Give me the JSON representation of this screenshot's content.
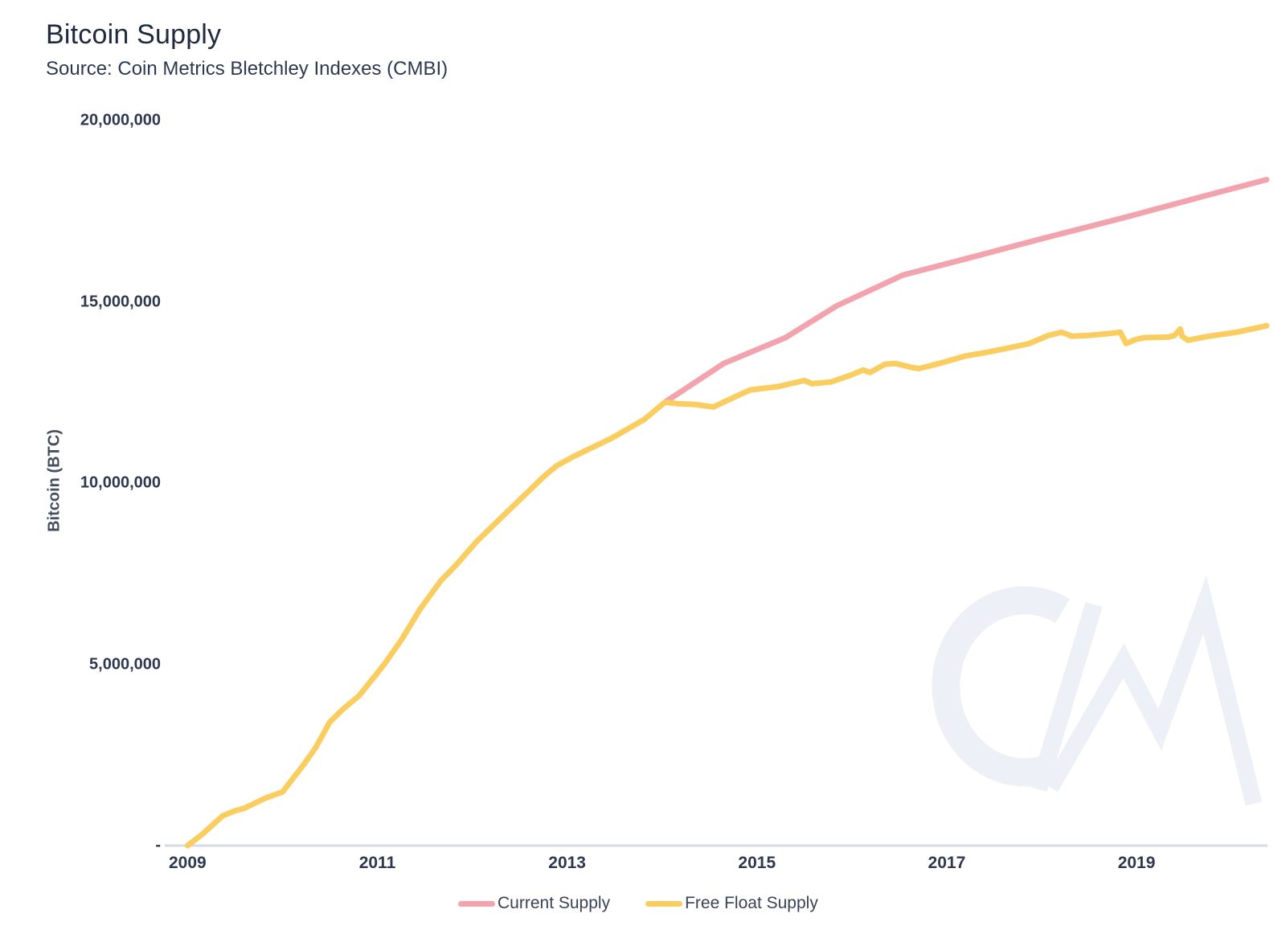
{
  "header": {
    "title": "Bitcoin Supply",
    "subtitle": "Source: Coin Metrics Bletchley Indexes (CMBI)"
  },
  "watermark": {
    "icon": "coin-metrics-cm-logo",
    "color": "#edf0f6"
  },
  "colors": {
    "current_supply": "#f2a3ae",
    "free_float_supply": "#facd60",
    "axis_line": "#d8dbe3",
    "tick_text": "#2f3850"
  },
  "chart_data": {
    "type": "line",
    "title": "Bitcoin Supply",
    "source": "Coin Metrics Bletchley Indexes (CMBI)",
    "xlabel": "",
    "ylabel": "Bitcoin (BTC)",
    "xlim": [
      2008.76,
      2020.38
    ],
    "ylim": [
      0,
      20000000
    ],
    "grid": false,
    "legend_position": "bottom",
    "x_ticks": [
      {
        "label": "2009",
        "value": 2009
      },
      {
        "label": "2011",
        "value": 2011
      },
      {
        "label": "2013",
        "value": 2013
      },
      {
        "label": "2015",
        "value": 2015
      },
      {
        "label": "2017",
        "value": 2017
      },
      {
        "label": "2019",
        "value": 2019
      }
    ],
    "y_ticks": [
      {
        "label": "20,000,000",
        "value": 20000000
      },
      {
        "label": "15,000,000",
        "value": 15000000
      },
      {
        "label": "10,000,000",
        "value": 10000000
      },
      {
        "label": "5,000,000",
        "value": 5000000
      },
      {
        "label": "-",
        "value": 0
      }
    ],
    "series": [
      {
        "name": "Current Supply",
        "color": "#f2a3ae",
        "points": [
          [
            2014.03,
            12230000
          ],
          [
            2014.65,
            13300000
          ],
          [
            2015.3,
            14010000
          ],
          [
            2015.84,
            14890000
          ],
          [
            2016.26,
            15400000
          ],
          [
            2016.54,
            15740000
          ],
          [
            2017.19,
            16180000
          ],
          [
            2018.03,
            16760000
          ],
          [
            2018.88,
            17330000
          ],
          [
            2019.73,
            17930000
          ],
          [
            2020.37,
            18370000
          ]
        ]
      },
      {
        "name": "Free Float Supply",
        "color": "#facd60",
        "points": [
          [
            2009.0,
            0
          ],
          [
            2009.15,
            300000
          ],
          [
            2009.23,
            490000
          ],
          [
            2009.37,
            820000
          ],
          [
            2009.5,
            960000
          ],
          [
            2009.6,
            1030000
          ],
          [
            2009.82,
            1310000
          ],
          [
            2010.0,
            1480000
          ],
          [
            2010.22,
            2220000
          ],
          [
            2010.35,
            2700000
          ],
          [
            2010.5,
            3410000
          ],
          [
            2010.64,
            3770000
          ],
          [
            2010.81,
            4140000
          ],
          [
            2011.07,
            4990000
          ],
          [
            2011.26,
            5700000
          ],
          [
            2011.45,
            6520000
          ],
          [
            2011.67,
            7310000
          ],
          [
            2011.83,
            7740000
          ],
          [
            2012.05,
            8400000
          ],
          [
            2012.31,
            9060000
          ],
          [
            2012.56,
            9690000
          ],
          [
            2012.75,
            10170000
          ],
          [
            2012.89,
            10480000
          ],
          [
            2013.08,
            10750000
          ],
          [
            2013.47,
            11240000
          ],
          [
            2013.81,
            11750000
          ],
          [
            2014.03,
            12230000
          ],
          [
            2014.16,
            12190000
          ],
          [
            2014.34,
            12170000
          ],
          [
            2014.54,
            12100000
          ],
          [
            2014.81,
            12430000
          ],
          [
            2014.93,
            12570000
          ],
          [
            2015.22,
            12660000
          ],
          [
            2015.5,
            12830000
          ],
          [
            2015.58,
            12740000
          ],
          [
            2015.78,
            12790000
          ],
          [
            2015.98,
            12970000
          ],
          [
            2016.12,
            13120000
          ],
          [
            2016.19,
            13050000
          ],
          [
            2016.35,
            13280000
          ],
          [
            2016.46,
            13300000
          ],
          [
            2016.63,
            13190000
          ],
          [
            2016.71,
            13160000
          ],
          [
            2016.92,
            13300000
          ],
          [
            2017.19,
            13500000
          ],
          [
            2017.43,
            13610000
          ],
          [
            2017.64,
            13720000
          ],
          [
            2017.87,
            13850000
          ],
          [
            2018.07,
            14070000
          ],
          [
            2018.21,
            14160000
          ],
          [
            2018.32,
            14050000
          ],
          [
            2018.49,
            14070000
          ],
          [
            2018.69,
            14120000
          ],
          [
            2018.83,
            14160000
          ],
          [
            2018.89,
            13850000
          ],
          [
            2018.99,
            13960000
          ],
          [
            2019.08,
            14010000
          ],
          [
            2019.34,
            14030000
          ],
          [
            2019.4,
            14070000
          ],
          [
            2019.46,
            14250000
          ],
          [
            2019.48,
            14050000
          ],
          [
            2019.54,
            13940000
          ],
          [
            2019.76,
            14050000
          ],
          [
            2020.05,
            14160000
          ],
          [
            2020.37,
            14340000
          ]
        ]
      }
    ]
  }
}
